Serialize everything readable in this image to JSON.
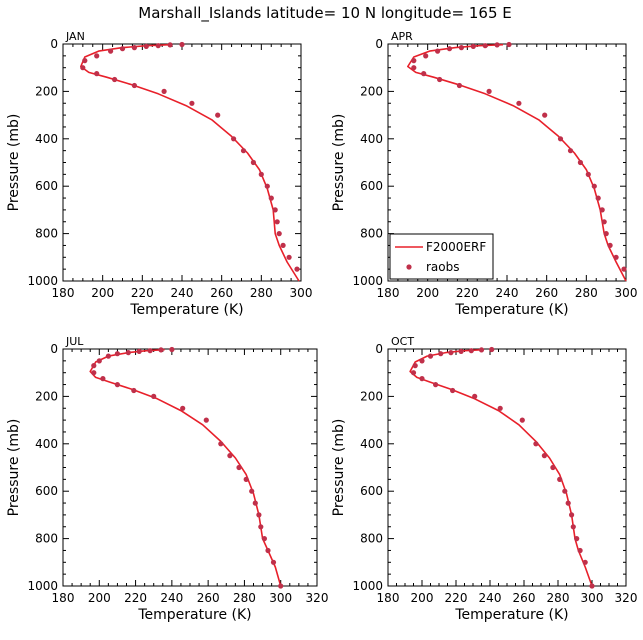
{
  "figure": {
    "title": "Marshall_Islands  latitude= 10 N longitude= 165 E"
  },
  "colors": {
    "model_line": "#e8202a",
    "raobs_dot": "#c0304a",
    "axis": "#000000",
    "background": "#ffffff"
  },
  "legend": {
    "panel_index": 1,
    "entries": [
      {
        "label": "F2000ERF",
        "marker": "line"
      },
      {
        "label": "raobs",
        "marker": "dot"
      }
    ]
  },
  "chart_data": [
    {
      "type": "line",
      "panel_label": "JAN",
      "xlabel": "Temperature (K)",
      "ylabel": "Pressure (mb)",
      "xlim": [
        180,
        300
      ],
      "ylim": [
        1000,
        0
      ],
      "xticks": [
        180,
        200,
        220,
        240,
        260,
        280,
        300
      ],
      "yticks": [
        0,
        200,
        400,
        600,
        800,
        1000
      ],
      "series": [
        {
          "name": "F2000ERF",
          "style": "line",
          "x": [
            234,
            222,
            210,
            198,
            191,
            189,
            193,
            202,
            214,
            228,
            242,
            255,
            265,
            273,
            279,
            283,
            286,
            287,
            289,
            293,
            299
          ],
          "y": [
            3,
            7,
            15,
            30,
            55,
            95,
            120,
            140,
            170,
            210,
            260,
            320,
            390,
            460,
            530,
            610,
            700,
            800,
            850,
            920,
            1000
          ]
        },
        {
          "name": "raobs",
          "style": "points",
          "x": [
            240,
            234,
            228,
            222,
            216,
            210,
            204,
            197,
            191,
            190,
            197,
            206,
            216,
            231,
            245,
            258,
            266,
            271,
            276,
            280,
            283,
            285,
            287,
            288,
            289,
            291,
            294,
            298
          ],
          "y": [
            2,
            4,
            7,
            10,
            15,
            20,
            30,
            50,
            70,
            100,
            125,
            150,
            175,
            200,
            250,
            300,
            400,
            450,
            500,
            550,
            600,
            650,
            700,
            750,
            800,
            850,
            900,
            950
          ]
        }
      ]
    },
    {
      "type": "line",
      "panel_label": "APR",
      "xlabel": "Temperature (K)",
      "ylabel": "Pressure (mb)",
      "xlim": [
        180,
        300
      ],
      "ylim": [
        1000,
        0
      ],
      "xticks": [
        180,
        200,
        220,
        240,
        260,
        280,
        300
      ],
      "yticks": [
        0,
        200,
        400,
        600,
        800,
        1000
      ],
      "series": [
        {
          "name": "F2000ERF",
          "style": "line",
          "x": [
            238,
            226,
            214,
            201,
            193,
            190,
            194,
            203,
            215,
            229,
            243,
            256,
            266,
            274,
            280,
            284,
            287,
            289,
            291,
            295,
            300
          ],
          "y": [
            3,
            7,
            15,
            30,
            55,
            95,
            120,
            140,
            170,
            210,
            260,
            320,
            390,
            460,
            530,
            610,
            700,
            800,
            850,
            920,
            1000
          ]
        },
        {
          "name": "raobs",
          "style": "points",
          "x": [
            241,
            235,
            229,
            223,
            217,
            211,
            205,
            199,
            193,
            193,
            198,
            206,
            216,
            231,
            246,
            259,
            267,
            272,
            277,
            281,
            284,
            286,
            288,
            289,
            290,
            292,
            295,
            299
          ],
          "y": [
            2,
            4,
            7,
            10,
            15,
            20,
            30,
            50,
            70,
            100,
            125,
            150,
            175,
            200,
            250,
            300,
            400,
            450,
            500,
            550,
            600,
            650,
            700,
            750,
            800,
            850,
            900,
            950
          ]
        }
      ]
    },
    {
      "type": "line",
      "panel_label": "JUL",
      "xlabel": "Temperature (K)",
      "ylabel": "Pressure (mb)",
      "xlim": [
        180,
        320
      ],
      "ylim": [
        1000,
        0
      ],
      "xticks": [
        180,
        200,
        220,
        240,
        260,
        280,
        300,
        320
      ],
      "yticks": [
        0,
        200,
        400,
        600,
        800,
        1000
      ],
      "series": [
        {
          "name": "F2000ERF",
          "style": "line",
          "x": [
            236,
            226,
            216,
            205,
            198,
            195,
            198,
            206,
            218,
            232,
            245,
            257,
            267,
            275,
            281,
            285,
            288,
            290,
            293,
            297,
            300
          ],
          "y": [
            3,
            7,
            15,
            30,
            55,
            95,
            120,
            140,
            170,
            210,
            260,
            320,
            390,
            460,
            530,
            610,
            700,
            800,
            850,
            920,
            1000
          ]
        },
        {
          "name": "raobs",
          "style": "points",
          "x": [
            240,
            234,
            228,
            222,
            216,
            210,
            205,
            200,
            197,
            197,
            202,
            210,
            219,
            230,
            246,
            259,
            267,
            272,
            277,
            281,
            284,
            286,
            288,
            289,
            291,
            293,
            296,
            300
          ],
          "y": [
            2,
            4,
            7,
            10,
            15,
            20,
            30,
            50,
            70,
            100,
            125,
            150,
            175,
            200,
            250,
            300,
            400,
            450,
            500,
            550,
            600,
            650,
            700,
            750,
            800,
            850,
            900,
            1000
          ]
        }
      ]
    },
    {
      "type": "line",
      "panel_label": "OCT",
      "xlabel": "Temperature (K)",
      "ylabel": "Pressure (mb)",
      "xlim": [
        180,
        320
      ],
      "ylim": [
        1000,
        0
      ],
      "xticks": [
        180,
        200,
        220,
        240,
        260,
        280,
        300,
        320
      ],
      "yticks": [
        0,
        200,
        400,
        600,
        800,
        1000
      ],
      "series": [
        {
          "name": "F2000ERF",
          "style": "line",
          "x": [
            236,
            225,
            214,
            203,
            196,
            193,
            197,
            205,
            217,
            231,
            245,
            257,
            267,
            275,
            281,
            285,
            288,
            290,
            292,
            296,
            300
          ],
          "y": [
            3,
            7,
            15,
            30,
            55,
            95,
            120,
            140,
            170,
            210,
            260,
            320,
            390,
            460,
            530,
            610,
            700,
            800,
            850,
            920,
            1000
          ]
        },
        {
          "name": "raobs",
          "style": "points",
          "x": [
            241,
            235,
            229,
            223,
            217,
            211,
            205,
            200,
            196,
            195,
            200,
            208,
            218,
            231,
            246,
            259,
            267,
            272,
            277,
            281,
            284,
            286,
            288,
            289,
            291,
            293,
            296,
            300
          ],
          "y": [
            2,
            4,
            7,
            10,
            15,
            20,
            30,
            50,
            70,
            100,
            125,
            150,
            175,
            200,
            250,
            300,
            400,
            450,
            500,
            550,
            600,
            650,
            700,
            750,
            800,
            850,
            900,
            1000
          ]
        }
      ]
    }
  ]
}
